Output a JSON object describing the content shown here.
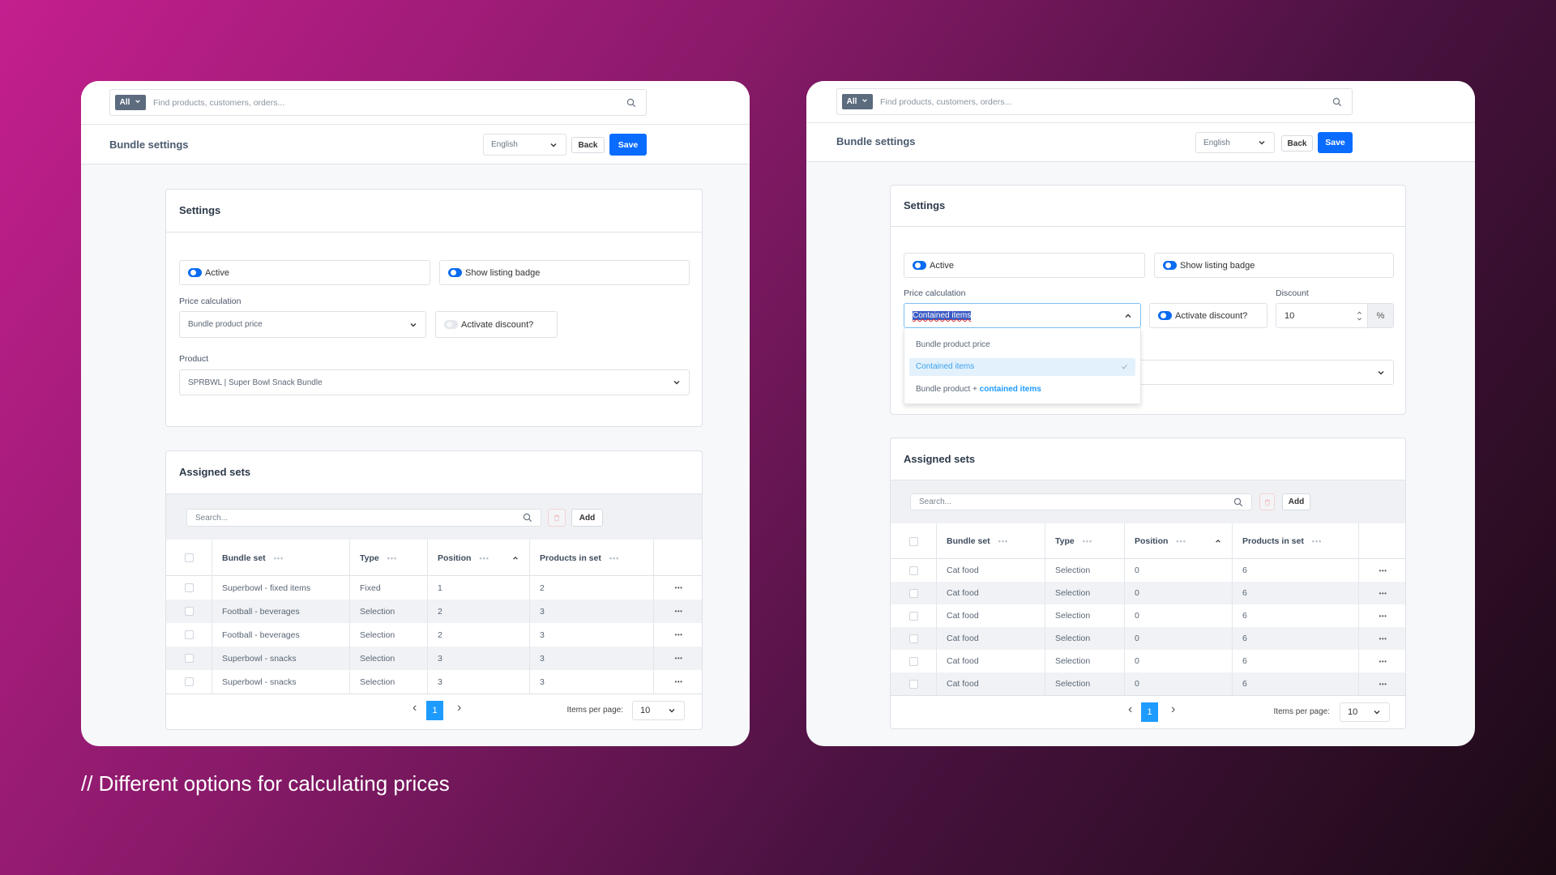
{
  "caption": "//  Different options for calculating prices",
  "colors": {
    "accent": "#0a6cff",
    "toggle_on": "#0b6bf0",
    "page_active": "#1e9bff",
    "option_highlight": "#e3f1fc"
  },
  "screens": [
    {
      "search": {
        "scope": "All",
        "placeholder": "Find products, customers, orders..."
      },
      "header": {
        "title": "Bundle settings",
        "language": "English",
        "back": "Back",
        "save": "Save"
      },
      "settings": {
        "title": "Settings",
        "active_label": "Active",
        "active_on": true,
        "badge_label": "Show listing badge",
        "badge_on": true,
        "price_label": "Price calculation",
        "price_value": "Bundle product price",
        "discount_toggle_label": "Activate discount?",
        "discount_on": false,
        "product_label": "Product",
        "product_value": "SPRBWL | Super Bowl Snack Bundle"
      },
      "assigned": {
        "title": "Assigned sets",
        "search_placeholder": "Search...",
        "add": "Add",
        "columns": [
          "Bundle set",
          "Type",
          "Position",
          "Products in set"
        ],
        "sorted_column": "Position",
        "rows": [
          [
            "Superbowl - fixed items",
            "Fixed",
            "1",
            "2"
          ],
          [
            "Football - beverages",
            "Selection",
            "2",
            "3"
          ],
          [
            "Football - beverages",
            "Selection",
            "2",
            "3"
          ],
          [
            "Superbowl - snacks",
            "Selection",
            "3",
            "3"
          ],
          [
            "Superbowl - snacks",
            "Selection",
            "3",
            "3"
          ]
        ],
        "page": "1",
        "items_per_page_label": "Items per page:",
        "items_per_page": "10"
      }
    },
    {
      "search": {
        "scope": "All",
        "placeholder": "Find products, customers, orders..."
      },
      "header": {
        "title": "Bundle settings",
        "language": "English",
        "back": "Back",
        "save": "Save"
      },
      "settings": {
        "title": "Settings",
        "active_label": "Active",
        "active_on": true,
        "badge_label": "Show listing badge",
        "badge_on": true,
        "price_label": "Price calculation",
        "price_value": "Contained items",
        "discount_toggle_label": "Activate discount?",
        "discount_on": true,
        "discount_label": "Discount",
        "discount_value": "10",
        "discount_unit": "%",
        "dropdown_open": true,
        "options": [
          {
            "parts": [
              "Bundle product price"
            ],
            "selected": false
          },
          {
            "parts": [
              "Contained items"
            ],
            "selected": true
          },
          {
            "parts": [
              "Bundle product + ",
              "contained items"
            ],
            "selected": false
          }
        ]
      },
      "assigned": {
        "title": "Assigned sets",
        "search_placeholder": "Search...",
        "add": "Add",
        "columns": [
          "Bundle set",
          "Type",
          "Position",
          "Products in set"
        ],
        "sorted_column": "Position",
        "rows": [
          [
            "Cat food",
            "Selection",
            "0",
            "6"
          ],
          [
            "Cat food",
            "Selection",
            "0",
            "6"
          ],
          [
            "Cat food",
            "Selection",
            "0",
            "6"
          ],
          [
            "Cat food",
            "Selection",
            "0",
            "6"
          ],
          [
            "Cat food",
            "Selection",
            "0",
            "6"
          ],
          [
            "Cat food",
            "Selection",
            "0",
            "6"
          ]
        ],
        "page": "1",
        "items_per_page_label": "Items per page:",
        "items_per_page": "10"
      }
    }
  ]
}
